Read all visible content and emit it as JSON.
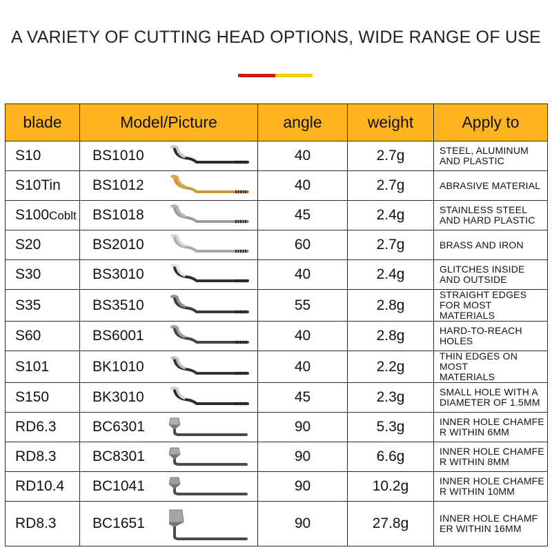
{
  "title": "A VARIETY OF CUTTING HEAD OPTIONS, WIDE RANGE OF USE",
  "table": {
    "headers": {
      "blade": "blade",
      "model": "Model/Picture",
      "angle": "angle",
      "weight": "weight",
      "apply": "Apply to"
    },
    "rows": [
      {
        "blade": "S10",
        "blade_suffix": "",
        "model": "BS1010",
        "angle": "40",
        "weight": "2.7g",
        "apply_lines": [
          "STEEL, ALUMINUM",
          "AND PLASTIC"
        ],
        "tool": "deburr-blade-icon",
        "shank_color": "#2b2b2b",
        "blade_color": "#c9c9c9"
      },
      {
        "blade": "S10Tin",
        "blade_suffix": "",
        "model": "BS1012",
        "angle": "40",
        "weight": "2.7g",
        "apply_lines": [
          "ABRASIVE MATERIAL"
        ],
        "tool": "deburr-blade-icon",
        "shank_color": "#c9973c",
        "blade_color": "#d9aa4f"
      },
      {
        "blade": "S100",
        "blade_suffix": "Coblt",
        "model": "BS1018",
        "angle": "45",
        "weight": "2.4g",
        "apply_lines": [
          "STAINLESS STEEL",
          "AND HARD PLASTIC"
        ],
        "tool": "deburr-blade-icon",
        "shank_color": "#9a9a9a",
        "blade_color": "#b5b5b5"
      },
      {
        "blade": "S20",
        "blade_suffix": "",
        "model": "BS2010",
        "angle": "60",
        "weight": "2.7g",
        "apply_lines": [
          "BRASS AND IRON"
        ],
        "tool": "deburr-blade-icon",
        "shank_color": "#a8a8a8",
        "blade_color": "#d4d4d4"
      },
      {
        "blade": "S30",
        "blade_suffix": "",
        "model": "BS3010",
        "angle": "40",
        "weight": "2.4g",
        "apply_lines": [
          "GLITCHES INSIDE",
          "AND OUTSIDE"
        ],
        "tool": "deburr-blade-icon",
        "shank_color": "#2e2e2e",
        "blade_color": "#e2e2e2"
      },
      {
        "blade": "S35",
        "blade_suffix": "",
        "model": "BS3510",
        "angle": "55",
        "weight": "2.8g",
        "apply_lines": [
          "STRAIGHT EDGES",
          "FOR MOST MATERIALS"
        ],
        "tool": "deburr-blade-icon",
        "shank_color": "#3a3a3a",
        "blade_color": "#8f8f8f"
      },
      {
        "blade": "S60",
        "blade_suffix": "",
        "model": "BS6001",
        "angle": "40",
        "weight": "2.8g",
        "apply_lines": [
          "HARD-TO-REACH",
          "HOLES"
        ],
        "tool": "deburr-blade-icon",
        "shank_color": "#444444",
        "blade_color": "#a0a0a0"
      },
      {
        "blade": "S101",
        "blade_suffix": "",
        "model": "BK1010",
        "angle": "40",
        "weight": "2.2g",
        "apply_lines": [
          "THIN EDGES ON MOST",
          "MATERIALS"
        ],
        "tool": "deburr-blade-icon",
        "shank_color": "#333333",
        "blade_color": "#c0c0c0"
      },
      {
        "blade": "S150",
        "blade_suffix": "",
        "model": "BK3010",
        "angle": "45",
        "weight": "2.3g",
        "apply_lines": [
          "SMALL HOLE WITH A",
          "DIAMETER OF 1.5MM"
        ],
        "tool": "deburr-blade-icon",
        "shank_color": "#2a2a2a",
        "blade_color": "#cfcfcf"
      },
      {
        "blade": "RD6.3",
        "blade_suffix": "",
        "model": "BC6301",
        "angle": "90",
        "weight": "5.3g",
        "apply_lines": [
          "INNER HOLE CHAMFE",
          "R WITHIN 6MM"
        ],
        "tool": "countersink-blade-icon",
        "shank_color": "#4a4a4a",
        "blade_color": "#b0b0b0"
      },
      {
        "blade": "RD8.3",
        "blade_suffix": "",
        "model": "BC8301",
        "angle": "90",
        "weight": "6.6g",
        "apply_lines": [
          "INNER HOLE CHAMFE",
          "R WITHIN 8MM"
        ],
        "tool": "countersink-blade-icon",
        "shank_color": "#4a4a4a",
        "blade_color": "#a8a8a8"
      },
      {
        "blade": "RD10.4",
        "blade_suffix": "",
        "model": "BC1041",
        "angle": "90",
        "weight": "10.2g",
        "apply_lines": [
          "INNER HOLE CHAMFE",
          "R WITHIN 10MM"
        ],
        "tool": "countersink-blade-icon",
        "shank_color": "#4a4a4a",
        "blade_color": "#9d9d9d"
      },
      {
        "blade": "RD8.3",
        "blade_suffix": "",
        "model": "BC1651",
        "angle": "90",
        "weight": "27.8g",
        "apply_lines": [
          "INNER HOLE CHAMF",
          "ER WITHIN 16MM"
        ],
        "tool": "countersink-blade-icon",
        "shank_color": "#4a4a4a",
        "blade_color": "#a5a5a5"
      }
    ]
  },
  "colors": {
    "header_bg": "#ffb41d",
    "accent_red": "#d7180f",
    "accent_yellow": "#f4d200"
  }
}
